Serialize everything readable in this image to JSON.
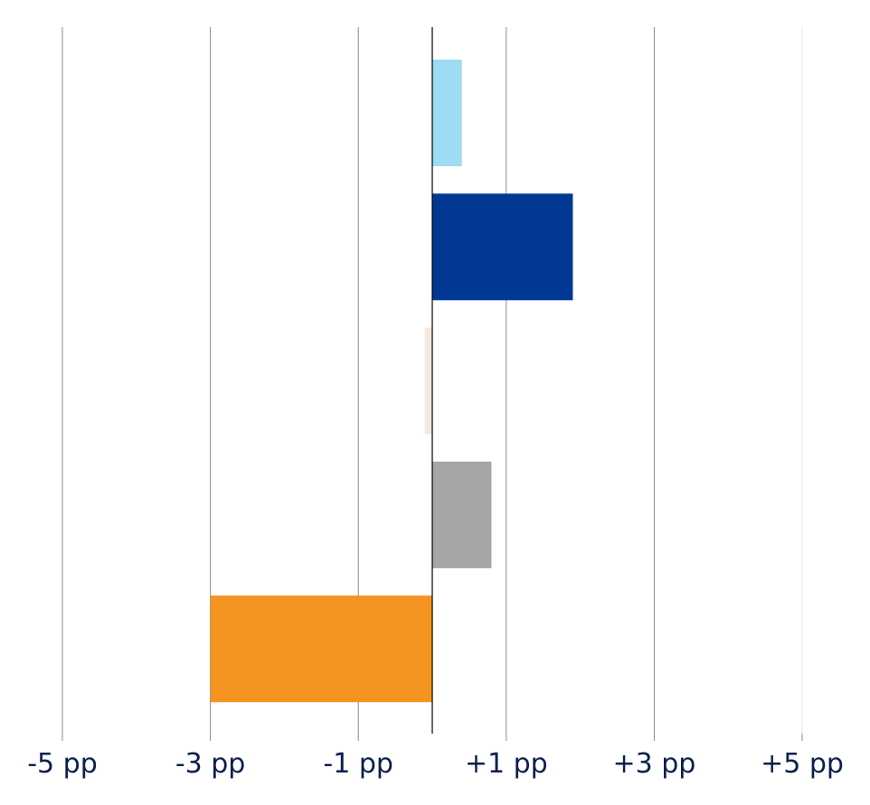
{
  "chart_data": {
    "type": "bar",
    "orientation": "horizontal",
    "title": "",
    "xlabel": "",
    "ylabel": "",
    "xlim": [
      -5,
      5
    ],
    "x_ticks": [
      -5,
      -3,
      -1,
      1,
      3,
      5
    ],
    "x_tick_labels": [
      "-5 pp",
      "-3 pp",
      "-1 pp",
      "+1 pp",
      "+3 pp",
      "+5 pp"
    ],
    "grid": true,
    "legend": "none",
    "bars": [
      {
        "value": 0.4,
        "color": "#9ddcf2"
      },
      {
        "value": 1.9,
        "color": "#003893"
      },
      {
        "value": -0.1,
        "color": "#f3e9dc"
      },
      {
        "value": 0.8,
        "color": "#a6a6a6"
      },
      {
        "value": -3.0,
        "color": "#f59320"
      }
    ]
  }
}
